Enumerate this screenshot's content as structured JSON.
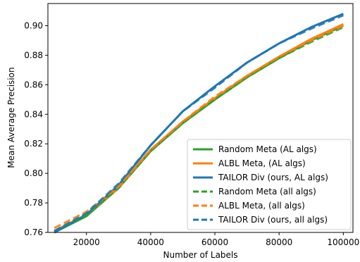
{
  "chart_data": {
    "type": "line",
    "xlabel": "Number of Labels",
    "ylabel": "Mean Average Precision",
    "xlim": [
      8000,
      103000
    ],
    "ylim": [
      0.76,
      0.915
    ],
    "xticks": [
      20000,
      40000,
      60000,
      80000,
      100000
    ],
    "xtick_labels": [
      "20000",
      "40000",
      "60000",
      "80000",
      "100000"
    ],
    "yticks": [
      0.76,
      0.78,
      0.8,
      0.82,
      0.84,
      0.86,
      0.88,
      0.9
    ],
    "ytick_labels": [
      "0.76",
      "0.78",
      "0.80",
      "0.82",
      "0.84",
      "0.86",
      "0.88",
      "0.90"
    ],
    "grid": false,
    "legend_position": "lower-right",
    "x": [
      10000,
      20000,
      30000,
      40000,
      50000,
      60000,
      70000,
      80000,
      90000,
      100000
    ],
    "series": [
      {
        "name": "Random Meta (AL algs)",
        "color": "#2ca02c",
        "dash": "solid",
        "values": [
          0.76,
          0.771,
          0.79,
          0.815,
          0.834,
          0.85,
          0.865,
          0.878,
          0.89,
          0.9
        ]
      },
      {
        "name": "ALBL Meta, (AL algs)",
        "color": "#ff7f0e",
        "dash": "solid",
        "values": [
          0.761,
          0.772,
          0.79,
          0.816,
          0.835,
          0.851,
          0.866,
          0.879,
          0.891,
          0.901
        ]
      },
      {
        "name": "TAILOR Div (ours, AL algs)",
        "color": "#1f77b4",
        "dash": "solid",
        "values": [
          0.76,
          0.772,
          0.792,
          0.819,
          0.842,
          0.859,
          0.875,
          0.888,
          0.899,
          0.908
        ]
      },
      {
        "name": "Random Meta (all algs)",
        "color": "#2ca02c",
        "dash": "dashed",
        "values": [
          0.761,
          0.772,
          0.79,
          0.815,
          0.834,
          0.85,
          0.865,
          0.878,
          0.889,
          0.899
        ]
      },
      {
        "name": "ALBL Meta, (all algs)",
        "color": "#ff7f0e",
        "dash": "dashed",
        "values": [
          0.763,
          0.774,
          0.791,
          0.816,
          0.835,
          0.852,
          0.866,
          0.879,
          0.89,
          0.9
        ]
      },
      {
        "name": "TAILOR Div (ours, all algs)",
        "color": "#1f77b4",
        "dash": "dashed",
        "values": [
          0.761,
          0.773,
          0.793,
          0.819,
          0.842,
          0.858,
          0.875,
          0.888,
          0.898,
          0.907
        ]
      }
    ]
  }
}
